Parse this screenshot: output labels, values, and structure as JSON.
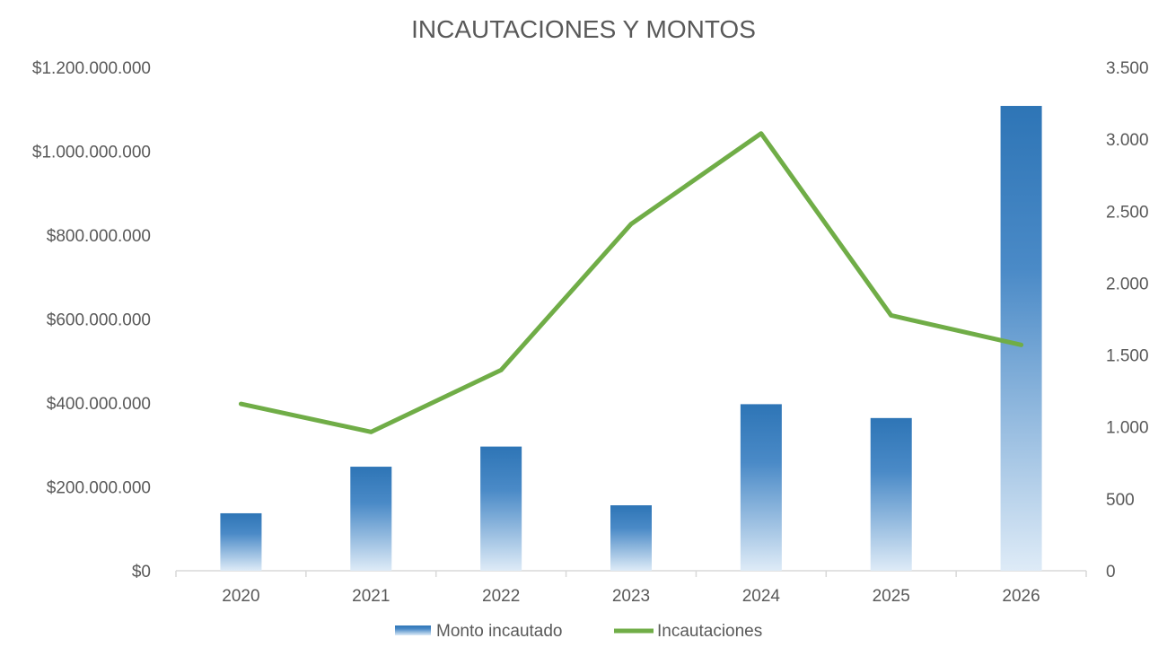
{
  "chart_data": {
    "type": "bar",
    "title": "INCAUTACIONES Y MONTOS",
    "categories": [
      "2020",
      "2021",
      "2022",
      "2023",
      "2024",
      "2025",
      "2026"
    ],
    "series": [
      {
        "name": "Monto incautado",
        "type": "bar",
        "axis": "left",
        "values": [
          137000000,
          248000000,
          296000000,
          156000000,
          397000000,
          364000000,
          1108000000
        ]
      },
      {
        "name": "Incautaciones",
        "type": "line",
        "axis": "right",
        "values": [
          1160,
          965,
          1395,
          2410,
          3040,
          1775,
          1570
        ]
      }
    ],
    "y_left": {
      "range": [
        0,
        1200000000
      ],
      "ticks": [
        0,
        200000000,
        400000000,
        600000000,
        800000000,
        1000000000,
        1200000000
      ],
      "tick_labels": [
        "$0",
        "$200.000.000",
        "$400.000.000",
        "$600.000.000",
        "$800.000.000",
        "$1.000.000.000",
        "$1.200.000.000"
      ]
    },
    "y_right": {
      "range": [
        0,
        3500
      ],
      "ticks": [
        0,
        500,
        1000,
        1500,
        2000,
        2500,
        3000,
        3500
      ],
      "tick_labels": [
        "0",
        "500",
        "1.000",
        "1.500",
        "2.000",
        "2.500",
        "3.000",
        "3.500"
      ]
    },
    "grid": false,
    "legend_position": "bottom",
    "colors": {
      "bar_top": "#2e75b6",
      "bar_bottom": "#deebf7",
      "line": "#70ad47",
      "axis": "#d9d9d9",
      "text": "#595959"
    }
  }
}
